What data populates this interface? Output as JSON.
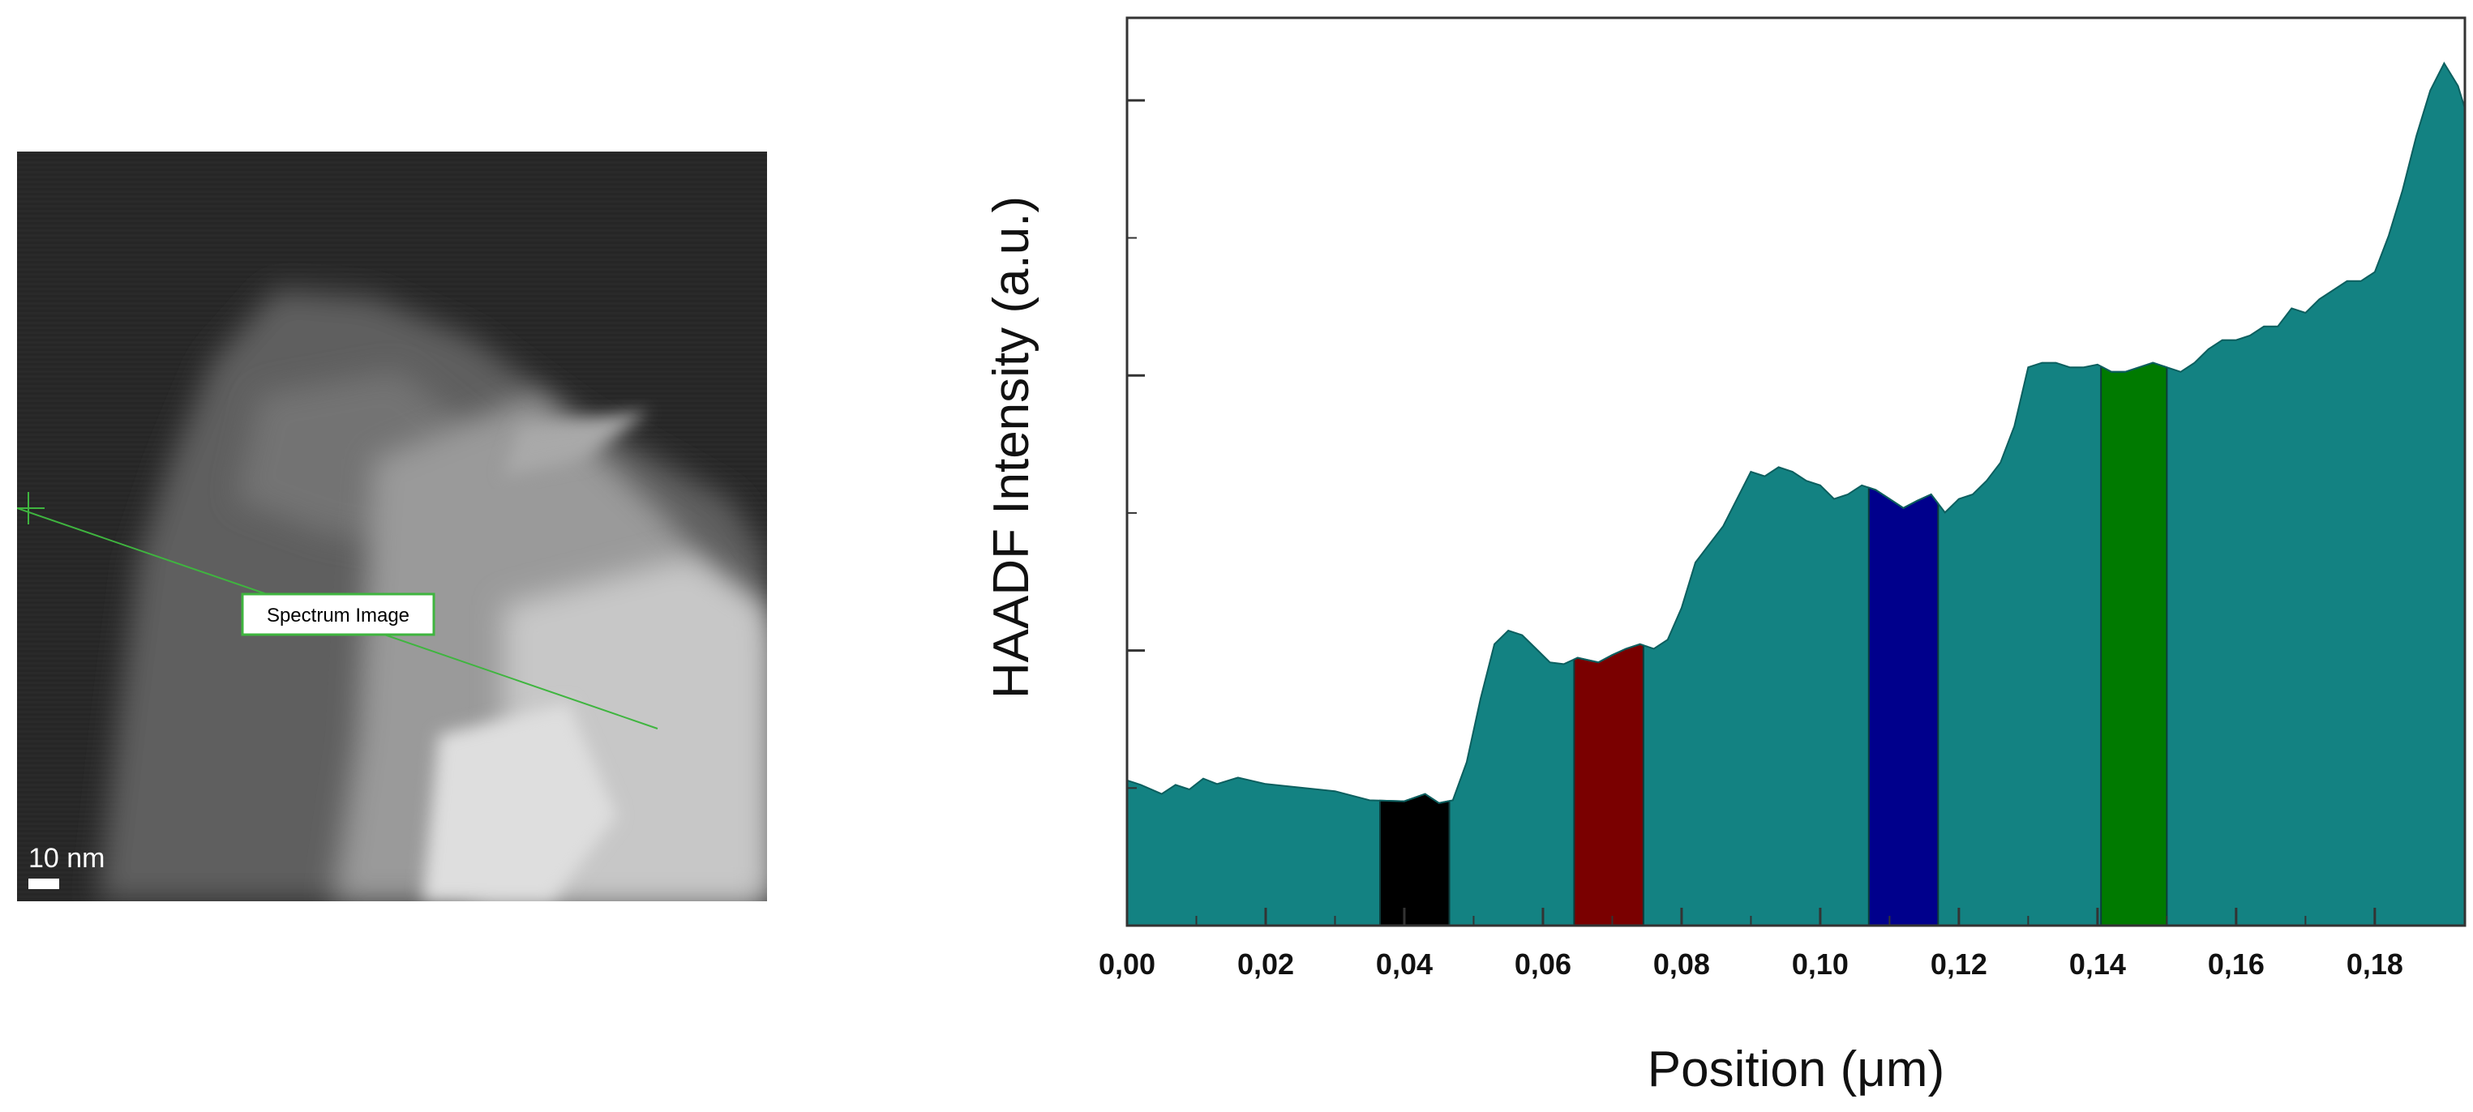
{
  "stem_image": {
    "scale_bar_label": "10 nm",
    "line_label": "Spectrum Image",
    "line_color": "#3fb53f"
  },
  "chart_data": {
    "type": "area",
    "title": "",
    "xlabel": "Position (μm)",
    "ylabel": "HAADF Intensity (a.u.)",
    "xlim": [
      0.0,
      0.193
    ],
    "ylim": [
      0,
      100
    ],
    "x_ticks": [
      0.0,
      0.02,
      0.04,
      0.06,
      0.08,
      0.1,
      0.12,
      0.14,
      0.16,
      0.18
    ],
    "x_tick_labels": [
      "0,00",
      "0,02",
      "0,04",
      "0,06",
      "0,08",
      "0,10",
      "0,12",
      "0,14",
      "0,16",
      "0,18"
    ],
    "y_tick_labels_shown": false,
    "grid": false,
    "fill_color": "#138282",
    "series": [
      {
        "x": [
          0.0,
          0.002,
          0.005,
          0.007,
          0.009,
          0.011,
          0.013,
          0.016,
          0.02,
          0.025,
          0.03,
          0.035,
          0.04,
          0.043,
          0.045,
          0.047,
          0.049,
          0.051,
          0.053,
          0.055,
          0.057,
          0.059,
          0.061,
          0.063,
          0.065,
          0.068,
          0.07,
          0.072,
          0.074,
          0.076,
          0.078,
          0.08,
          0.082,
          0.084,
          0.086,
          0.088,
          0.09,
          0.092,
          0.094,
          0.096,
          0.098,
          0.1,
          0.102,
          0.104,
          0.106,
          0.108,
          0.11,
          0.112,
          0.114,
          0.116,
          0.118,
          0.12,
          0.122,
          0.124,
          0.126,
          0.128,
          0.13,
          0.132,
          0.134,
          0.136,
          0.138,
          0.14,
          0.142,
          0.144,
          0.146,
          0.148,
          0.15,
          0.152,
          0.154,
          0.156,
          0.158,
          0.16,
          0.162,
          0.164,
          0.166,
          0.168,
          0.17,
          0.172,
          0.174,
          0.176,
          0.178,
          0.18,
          0.182,
          0.184,
          0.186,
          0.188,
          0.19,
          0.192,
          0.193
        ],
        "y": [
          16.0,
          15.5,
          14.5,
          15.5,
          15.0,
          16.2,
          15.6,
          16.3,
          15.6,
          15.2,
          14.8,
          13.8,
          13.7,
          14.5,
          13.5,
          13.8,
          18.0,
          25.0,
          31.0,
          32.5,
          32.0,
          30.5,
          29.0,
          28.8,
          29.5,
          29.0,
          29.8,
          30.5,
          31.0,
          30.5,
          31.5,
          35.0,
          40.0,
          42.0,
          44.0,
          47.0,
          50.0,
          49.5,
          50.5,
          50.0,
          49.0,
          48.5,
          47.0,
          47.5,
          48.5,
          48.0,
          47.0,
          46.0,
          46.8,
          47.5,
          45.5,
          47.0,
          47.5,
          49.0,
          51.0,
          55.0,
          61.5,
          62.0,
          62.0,
          61.5,
          61.5,
          61.8,
          61.0,
          61.0,
          61.5,
          62.0,
          61.5,
          61.0,
          62.0,
          63.5,
          64.5,
          64.5,
          65.0,
          66.0,
          66.0,
          68.0,
          67.5,
          69.0,
          70.0,
          71.0,
          71.0,
          72.0,
          76.0,
          81.0,
          87.0,
          92.0,
          95.0,
          92.5,
          90.0
        ]
      }
    ],
    "highlight_bands": [
      {
        "x_start": 0.0365,
        "x_end": 0.0465,
        "color": "#000000"
      },
      {
        "x_start": 0.0645,
        "x_end": 0.0745,
        "color": "#7a0000"
      },
      {
        "x_start": 0.107,
        "x_end": 0.117,
        "color": "#00008c"
      },
      {
        "x_start": 0.1405,
        "x_end": 0.15,
        "color": "#007a00"
      }
    ]
  }
}
